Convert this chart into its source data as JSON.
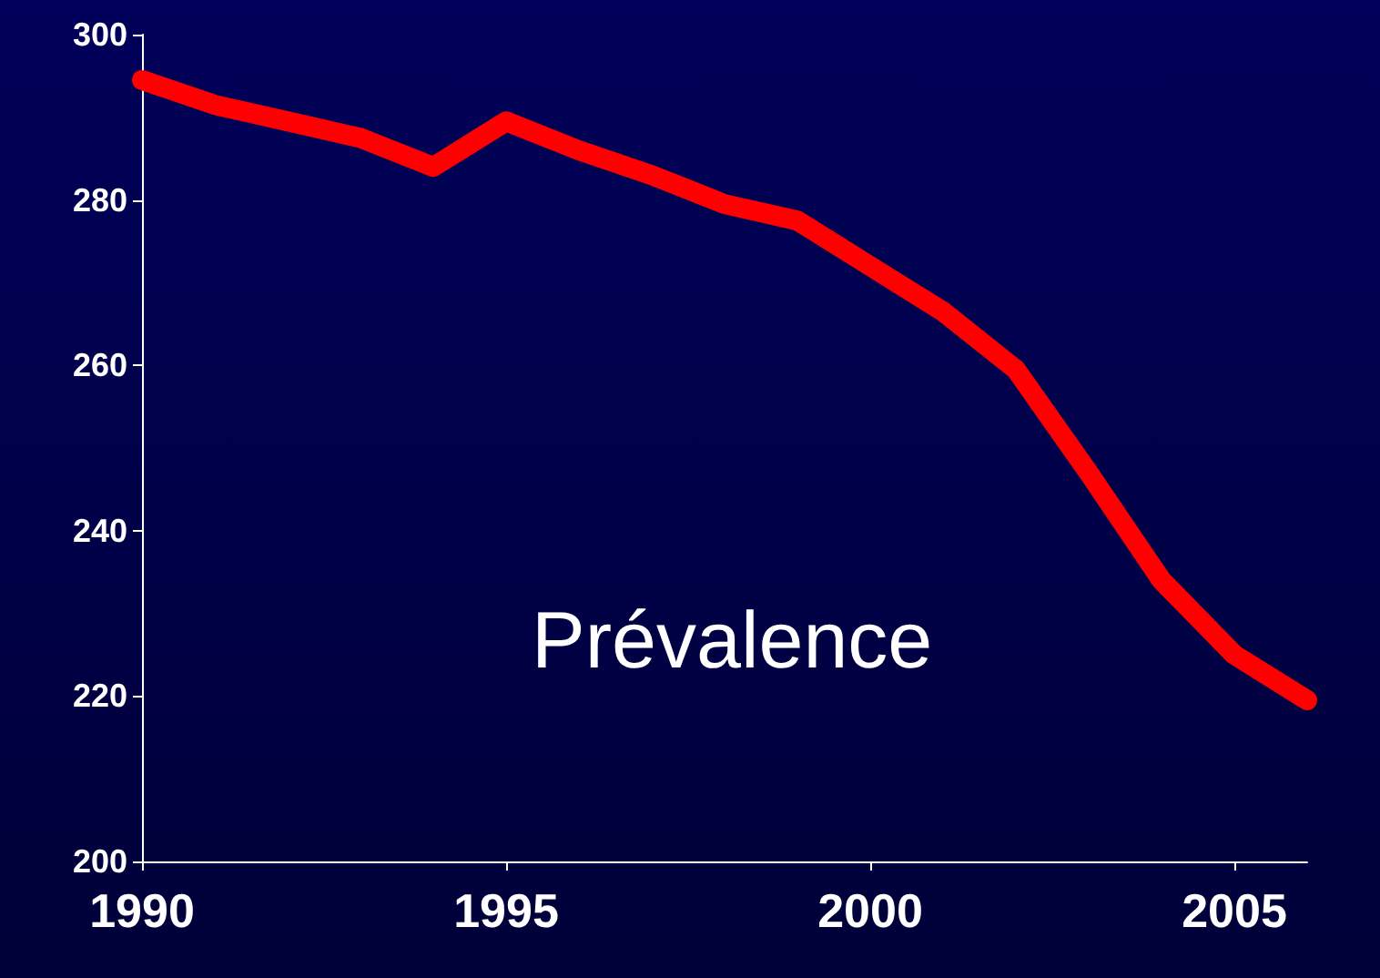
{
  "chart_data": {
    "type": "line",
    "x": [
      1990,
      1991,
      1992,
      1993,
      1994,
      1995,
      1996,
      1997,
      1998,
      1999,
      2000,
      2001,
      2002,
      2003,
      2004,
      2005,
      2006
    ],
    "series": [
      {
        "color": "#ff0000",
        "values": [
          294.5,
          291.5,
          289.5,
          287.5,
          284,
          289.5,
          286,
          283,
          279.5,
          277.5,
          272,
          266.5,
          259.5,
          247,
          234,
          225,
          219.5
        ]
      }
    ],
    "xlim": [
      1990,
      2006
    ],
    "xticks": [
      1990,
      1995,
      2000,
      2005
    ],
    "ylim": [
      200,
      300
    ],
    "yticks": [
      200,
      220,
      240,
      260,
      280,
      300
    ],
    "annotations": [
      "Prévalence"
    ],
    "grid": false,
    "line_style": "solid"
  }
}
